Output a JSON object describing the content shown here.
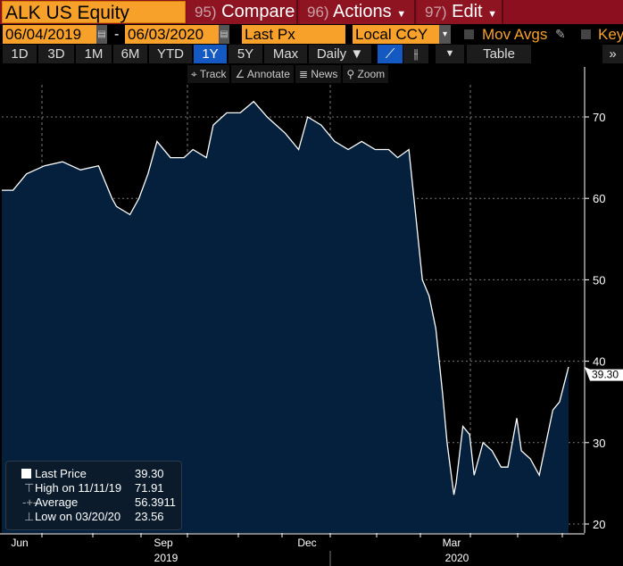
{
  "header": {
    "ticker": "ALK US Equity",
    "compare": {
      "num": "95)",
      "label": "Compare"
    },
    "actions": {
      "num": "96)",
      "label": "Actions"
    },
    "edit": {
      "num": "97)",
      "label": "Edit"
    }
  },
  "controls": {
    "start_date": "06/04/2019",
    "end_date": "06/03/2020",
    "separator": "-",
    "field": "Last Px",
    "currency": "Local CCY",
    "mov_avgs": "Mov Avgs",
    "key": "Key"
  },
  "ranges": [
    "1D",
    "3D",
    "1M",
    "6M",
    "YTD",
    "1Y",
    "5Y",
    "Max"
  ],
  "active_range": "1Y",
  "frequency": "Daily ▼",
  "table_label": "Table",
  "tools": {
    "track": "Track",
    "annotate": "Annotate",
    "news": "News",
    "zoom": "Zoom"
  },
  "legend": {
    "last": {
      "label": "Last Price",
      "value": "39.30"
    },
    "high": {
      "label": "High on 11/11/19",
      "value": "71.91"
    },
    "avg": {
      "label": "Average",
      "value": "56.3911"
    },
    "low": {
      "label": "Low on 03/20/20",
      "value": "23.56"
    }
  },
  "chart_data": {
    "type": "area",
    "title": "ALK US Equity",
    "ylim": [
      20,
      75
    ],
    "yticks": [
      "20",
      "30",
      "40",
      "50",
      "60",
      "70"
    ],
    "last_value_label": "39.30",
    "x_unit": "trading day index from 06/04/2019",
    "xlim": [
      0,
      252
    ],
    "month_labels": [
      "Jun",
      "Sep",
      "Dec",
      "Mar"
    ],
    "year_labels": [
      "2019",
      "2020"
    ],
    "x": [
      0,
      5,
      11,
      19,
      27,
      35,
      43,
      49,
      51,
      57,
      61,
      65,
      69,
      75,
      81,
      85,
      91,
      94,
      100,
      106,
      112,
      118,
      122,
      126,
      132,
      136,
      142,
      148,
      154,
      160,
      166,
      172,
      176,
      181,
      184,
      187,
      190,
      193,
      196,
      198,
      201,
      202,
      205,
      208,
      210,
      214,
      218,
      222,
      225,
      229,
      231,
      235,
      239,
      242,
      245,
      248,
      252
    ],
    "y": [
      61,
      61,
      63,
      64,
      64.5,
      63.5,
      64,
      60,
      59,
      58,
      60,
      63,
      67,
      65,
      65,
      66,
      65,
      69,
      70.5,
      70.5,
      71.9,
      70,
      69,
      68,
      66,
      70,
      69,
      67,
      66,
      67,
      66,
      66,
      65,
      66,
      58,
      50,
      48,
      44,
      36,
      30,
      23.6,
      25,
      32,
      31,
      26,
      30,
      29,
      27,
      27,
      33,
      29,
      28,
      26,
      30,
      34,
      35,
      39.3
    ],
    "colors": {
      "fill": "#04203d",
      "line": "#ffffff"
    }
  }
}
